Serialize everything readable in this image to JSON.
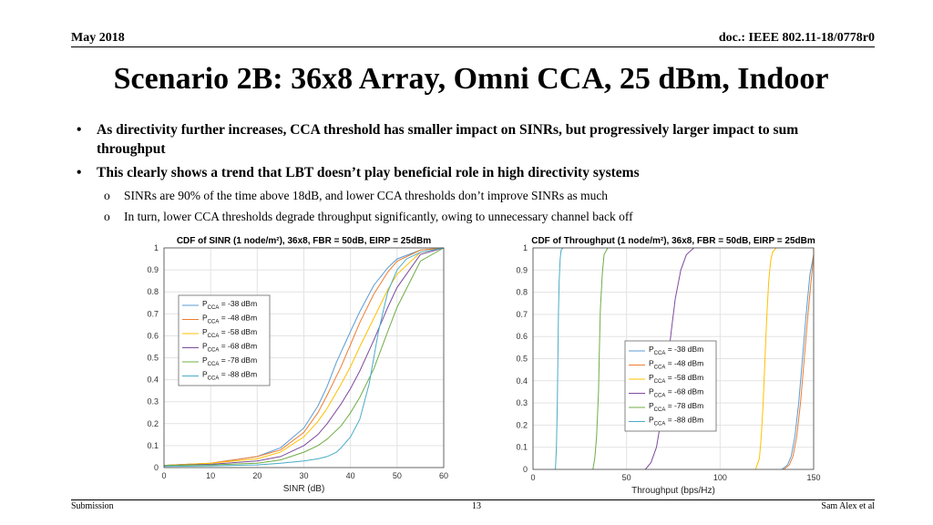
{
  "header": {
    "left": "May 2018",
    "right": "doc.: IEEE 802.11-18/0778r0"
  },
  "title": "Scenario 2B: 36x8 Array, Omni CCA, 25 dBm, Indoor",
  "bullets": [
    {
      "text": "As directivity further increases, CCA threshold has smaller impact on SINRs, but progressively larger impact to sum throughput"
    },
    {
      "text": "This clearly shows a trend that LBT doesn’t play beneficial role in high directivity systems"
    }
  ],
  "subbullets": [
    {
      "text": "SINRs are 90% of the time above 18dB, and lower CCA thresholds don’t improve SINRs as much"
    },
    {
      "text": "In turn, lower CCA thresholds degrade throughput significantly, owing to unnecessary channel back off"
    }
  ],
  "footer": {
    "left": "Submission",
    "center": "13",
    "right": "Sam Alex et al"
  },
  "chart_data": [
    {
      "type": "line",
      "title": "CDF of SINR (1 node/m²), 36x8, FBR = 50dB, EIRP = 25dBm",
      "xlabel": "SINR (dB)",
      "ylabel": "",
      "xlim": [
        0,
        60
      ],
      "ylim": [
        0,
        1
      ],
      "xticks": [
        0,
        10,
        20,
        30,
        40,
        50,
        60
      ],
      "yticks": [
        0,
        0.1,
        0.2,
        0.3,
        0.4,
        0.5,
        0.6,
        0.7,
        0.8,
        0.9,
        1
      ],
      "grid": true,
      "legend_position": "left",
      "series": [
        {
          "name": "P_CCA = -38 dBm",
          "color": "#5b9bd5",
          "x": [
            0,
            10,
            20,
            25,
            30,
            33,
            35,
            37,
            40,
            42,
            45,
            48,
            50,
            55,
            60
          ],
          "y": [
            0.01,
            0.02,
            0.05,
            0.09,
            0.18,
            0.28,
            0.37,
            0.48,
            0.62,
            0.71,
            0.83,
            0.91,
            0.95,
            0.99,
            1.0
          ]
        },
        {
          "name": "P_CCA = -48 dBm",
          "color": "#ed7d31",
          "x": [
            0,
            10,
            20,
            25,
            30,
            33,
            35,
            38,
            40,
            42,
            45,
            48,
            50,
            55,
            60
          ],
          "y": [
            0.01,
            0.02,
            0.05,
            0.08,
            0.16,
            0.25,
            0.33,
            0.46,
            0.56,
            0.66,
            0.79,
            0.89,
            0.94,
            0.99,
            1.0
          ]
        },
        {
          "name": "P_CCA = -58 dBm",
          "color": "#ffc000",
          "x": [
            0,
            10,
            20,
            25,
            30,
            33,
            35,
            38,
            40,
            42,
            45,
            48,
            50,
            55,
            60
          ],
          "y": [
            0.01,
            0.02,
            0.04,
            0.07,
            0.14,
            0.21,
            0.27,
            0.38,
            0.46,
            0.55,
            0.68,
            0.81,
            0.88,
            0.98,
            1.0
          ]
        },
        {
          "name": "P_CCA = -68 dBm",
          "color": "#7e4b9e",
          "x": [
            0,
            10,
            20,
            25,
            30,
            33,
            35,
            38,
            40,
            42,
            45,
            48,
            50,
            55,
            60
          ],
          "y": [
            0.01,
            0.015,
            0.03,
            0.05,
            0.1,
            0.15,
            0.2,
            0.29,
            0.36,
            0.44,
            0.58,
            0.73,
            0.82,
            0.97,
            1.0
          ]
        },
        {
          "name": "P_CCA = -78 dBm",
          "color": "#70ad47",
          "x": [
            0,
            10,
            20,
            25,
            30,
            33,
            35,
            38,
            40,
            42,
            45,
            48,
            50,
            55,
            60
          ],
          "y": [
            0.01,
            0.012,
            0.02,
            0.035,
            0.07,
            0.1,
            0.13,
            0.19,
            0.25,
            0.32,
            0.45,
            0.62,
            0.73,
            0.94,
            1.0
          ]
        },
        {
          "name": "P_CCA = -88 dBm",
          "color": "#4bacc6",
          "x": [
            0,
            10,
            20,
            25,
            30,
            33,
            35,
            37,
            38,
            40,
            42,
            44,
            46,
            48,
            50,
            52,
            55,
            60
          ],
          "y": [
            0.005,
            0.008,
            0.012,
            0.02,
            0.03,
            0.04,
            0.05,
            0.07,
            0.09,
            0.14,
            0.22,
            0.38,
            0.62,
            0.8,
            0.9,
            0.95,
            0.98,
            1.0
          ]
        }
      ]
    },
    {
      "type": "line",
      "title": "CDF of Throughput (1 node/m²), 36x8, FBR = 50dB, EIRP = 25dBm",
      "xlabel": "Throughput (bps/Hz)",
      "ylabel": "",
      "xlim": [
        0,
        150
      ],
      "ylim": [
        0,
        1
      ],
      "xticks": [
        0,
        50,
        100,
        150
      ],
      "yticks": [
        0,
        0.1,
        0.2,
        0.3,
        0.4,
        0.5,
        0.6,
        0.7,
        0.8,
        0.9,
        1
      ],
      "grid": true,
      "legend_position": "middle-right",
      "series": [
        {
          "name": "P_CCA = -38 dBm",
          "color": "#5b9bd5",
          "x": [
            133,
            136,
            138,
            140,
            142,
            144,
            146,
            148,
            150,
            153
          ],
          "y": [
            0,
            0.02,
            0.06,
            0.15,
            0.3,
            0.5,
            0.7,
            0.88,
            0.97,
            1.0
          ]
        },
        {
          "name": "P_CCA = -48 dBm",
          "color": "#ed7d31",
          "x": [
            134,
            137,
            139,
            141,
            143,
            145,
            147,
            149,
            151,
            153
          ],
          "y": [
            0,
            0.02,
            0.06,
            0.15,
            0.3,
            0.5,
            0.7,
            0.88,
            0.97,
            1.0
          ]
        },
        {
          "name": "P_CCA = -58 dBm",
          "color": "#ffc000",
          "x": [
            119,
            121,
            122,
            123,
            124,
            125,
            126,
            127,
            128,
            130
          ],
          "y": [
            0,
            0.05,
            0.15,
            0.3,
            0.5,
            0.7,
            0.85,
            0.94,
            0.98,
            1.0
          ]
        },
        {
          "name": "P_CCA = -68 dBm",
          "color": "#7e4b9e",
          "x": [
            60,
            63,
            66,
            68,
            70,
            72,
            74,
            76,
            79,
            82,
            86
          ],
          "y": [
            0,
            0.03,
            0.1,
            0.2,
            0.33,
            0.48,
            0.63,
            0.77,
            0.9,
            0.97,
            1.0
          ]
        },
        {
          "name": "P_CCA = -78 dBm",
          "color": "#70ad47",
          "x": [
            32,
            33,
            34,
            35,
            35.5,
            36,
            37,
            38,
            40
          ],
          "y": [
            0,
            0.05,
            0.15,
            0.35,
            0.55,
            0.72,
            0.88,
            0.97,
            1.0
          ]
        },
        {
          "name": "P_CCA = -88 dBm",
          "color": "#4bacc6",
          "x": [
            12,
            12.5,
            13,
            13.3,
            13.6,
            14,
            14.5,
            15,
            16
          ],
          "y": [
            0,
            0.1,
            0.3,
            0.5,
            0.7,
            0.85,
            0.95,
            0.99,
            1.0
          ]
        }
      ]
    }
  ]
}
